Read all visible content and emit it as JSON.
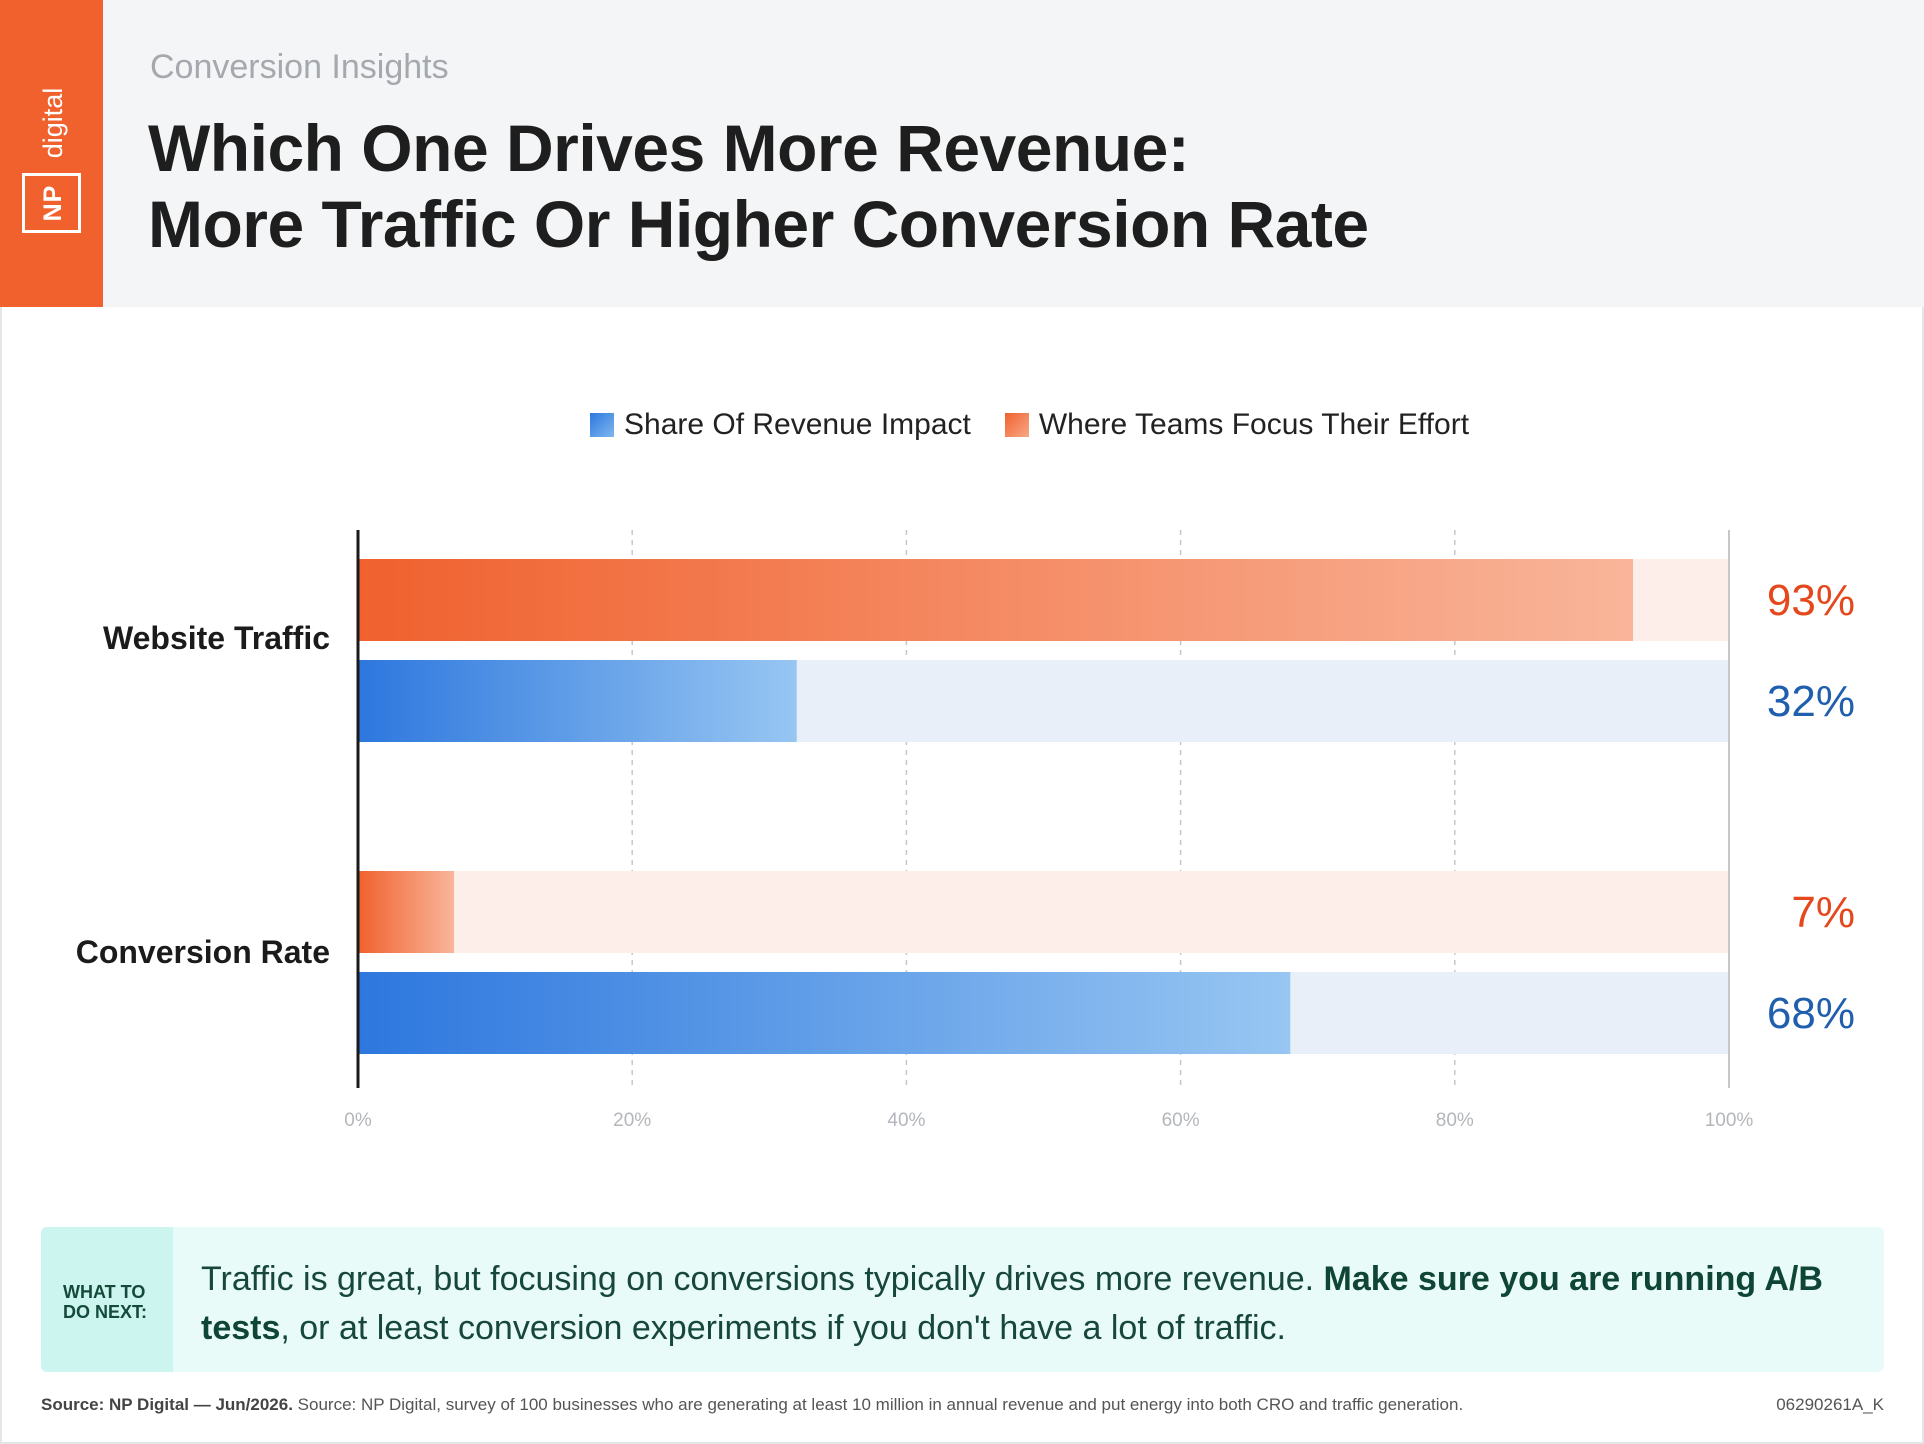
{
  "brand": {
    "logo_np": "NP",
    "logo_digital": "digital"
  },
  "header": {
    "kicker": "Conversion Insights",
    "title_line1": "Which One Drives More Revenue:",
    "title_line2": "More Traffic Or Higher Conversion Rate"
  },
  "colors": {
    "orange": "#f0612e",
    "orange_light": "#fdeeea",
    "blue": "#2d77de",
    "blue_light": "#e8eff8",
    "orange_text": "#e4481c",
    "blue_text": "#1f5fae"
  },
  "chart_data": {
    "type": "bar",
    "orientation": "horizontal",
    "categories": [
      "Website Traffic",
      "Conversion Rate"
    ],
    "series": [
      {
        "name": "Where Teams Focus Their Effort",
        "values": [
          93,
          7
        ],
        "value_labels": [
          "93%",
          "7%"
        ]
      },
      {
        "name": "Share Of Revenue Impact",
        "values": [
          32,
          68
        ],
        "value_labels": [
          "32%",
          "68%"
        ]
      }
    ],
    "legend": [
      "Share Of Revenue Impact",
      "Where Teams Focus Their Effort"
    ],
    "legend_position": "top",
    "xlim": [
      0,
      100
    ],
    "xticks": [
      "0%",
      "20%",
      "40%",
      "60%",
      "80%",
      "100%"
    ],
    "grid": "vertical dashed",
    "title": "",
    "xlabel": "",
    "ylabel": ""
  },
  "callout": {
    "tag_line1": "WHAT TO",
    "tag_line2": "DO NEXT:",
    "text_plain_1": "Traffic is great, but focusing on conversions typically drives more revenue. ",
    "text_bold": "Make sure you are running A/B tests",
    "text_plain_2": ", or at least conversion experiments if you don't have a lot of traffic."
  },
  "footer": {
    "source_bold": "Source: NP Digital — Jun/2026.",
    "source_text": " Source: NP Digital, survey of 100 businesses who are generating at least 10 million in annual revenue and put energy into both CRO and traffic generation.",
    "code": "06290261A_K"
  }
}
